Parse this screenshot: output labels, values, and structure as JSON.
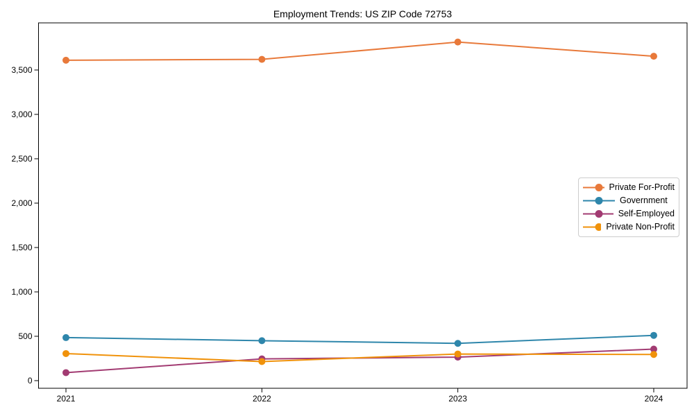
{
  "chart_data": {
    "type": "line",
    "title": "Employment Trends: US ZIP Code 72753",
    "x": [
      2021,
      2022,
      2023,
      2024
    ],
    "x_tick_labels": [
      "2021",
      "2022",
      "2023",
      "2024"
    ],
    "y_ticks": [
      0,
      500,
      1000,
      1500,
      2000,
      2500,
      3000,
      3500
    ],
    "y_tick_labels": [
      "0",
      "500",
      "1,000",
      "1,500",
      "2,000",
      "2,500",
      "3,000",
      "3,500"
    ],
    "xlim": [
      2020.86,
      2024.17
    ],
    "ylim": [
      -86,
      4031
    ],
    "grid": false,
    "legend_position": "center right",
    "background": "#ffffff",
    "axis_color": "#000000",
    "text_color": "#000000",
    "series": [
      {
        "name": "Private For-Profit",
        "color": "#E8793A",
        "values": [
          3610,
          3620,
          3815,
          3655
        ]
      },
      {
        "name": "Government",
        "color": "#2E86AB",
        "values": [
          485,
          450,
          420,
          510
        ]
      },
      {
        "name": "Self-Employed",
        "color": "#A23B72",
        "values": [
          90,
          245,
          265,
          355
        ]
      },
      {
        "name": "Private Non-Profit",
        "color": "#F0920B",
        "values": [
          305,
          215,
          300,
          295
        ]
      }
    ]
  }
}
